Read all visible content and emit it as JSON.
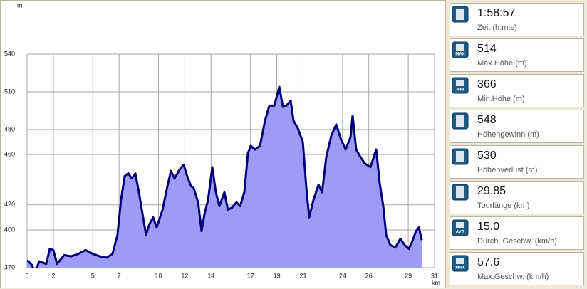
{
  "chart_data": {
    "type": "area",
    "y_unit": "m",
    "x_unit": "km",
    "x": [
      0,
      0.38,
      0.6,
      0.92,
      1.46,
      1.73,
      2.0,
      2.28,
      2.82,
      3.36,
      3.9,
      4.44,
      4.99,
      5.53,
      6.07,
      6.5,
      6.88,
      7.15,
      7.43,
      7.7,
      7.97,
      8.24,
      8.51,
      8.78,
      9.05,
      9.32,
      9.59,
      9.86,
      10.3,
      10.68,
      10.95,
      11.22,
      11.6,
      11.92,
      12.14,
      12.47,
      12.68,
      13.01,
      13.28,
      13.5,
      13.77,
      14.09,
      14.36,
      14.63,
      15.01,
      15.28,
      15.61,
      15.93,
      16.21,
      16.53,
      16.8,
      17.02,
      17.34,
      17.72,
      18.1,
      18.43,
      18.81,
      19.19,
      19.46,
      19.73,
      20.05,
      20.27,
      20.6,
      20.98,
      21.25,
      21.46,
      21.79,
      22.17,
      22.44,
      22.76,
      23.14,
      23.52,
      23.85,
      24.23,
      24.61,
      24.77,
      25.04,
      25.37,
      25.69,
      26.12,
      26.56,
      26.83,
      27.1,
      27.32,
      27.64,
      28.02,
      28.4,
      28.73,
      29.05,
      29.27,
      29.59,
      29.81,
      30.03
    ],
    "values": [
      376,
      372,
      366,
      375,
      373,
      385,
      384,
      373,
      380,
      379,
      381,
      384,
      381,
      379,
      378,
      381,
      396,
      424,
      443,
      445,
      441,
      445,
      430,
      413,
      396,
      405,
      410,
      402,
      416,
      435,
      447,
      441,
      448,
      452,
      444,
      435,
      433,
      422,
      399,
      413,
      424,
      450,
      430,
      419,
      430,
      416,
      418,
      422,
      419,
      430,
      461,
      467,
      464,
      467,
      487,
      499,
      499,
      514,
      498,
      499,
      503,
      487,
      481,
      470,
      433,
      410,
      424,
      436,
      430,
      458,
      475,
      484,
      473,
      464,
      474,
      491,
      464,
      458,
      453,
      450,
      464,
      437,
      419,
      396,
      388,
      386,
      393,
      388,
      385,
      390,
      399,
      402,
      392
    ],
    "color": "#9c9cf4",
    "line_color": "#00007a",
    "xlim": [
      0,
      31
    ],
    "ylim": [
      370,
      540
    ],
    "xticks": [
      0,
      2,
      5,
      7,
      10,
      12,
      14,
      17,
      19,
      21,
      24,
      26,
      29,
      31
    ],
    "yticks": [
      370,
      400,
      420,
      460,
      480,
      510,
      540
    ],
    "grid": true
  },
  "stats": [
    {
      "value": "1:58:57",
      "label": "Zeit (h:m:s)"
    },
    {
      "value": "514",
      "label": "Max.Höhe (m)",
      "badge": "MAX"
    },
    {
      "value": "366",
      "label": "Min.Höhe (m)",
      "badge": "MIN"
    },
    {
      "value": "548",
      "label": "Höhengewinn (m)"
    },
    {
      "value": "530",
      "label": "Höhenverlust (m)"
    },
    {
      "value": "29.85",
      "label": "Tourlänge (km)"
    },
    {
      "value": "15.0",
      "label": "Durch. Geschw. (km/h)",
      "badge": "AVG"
    },
    {
      "value": "57.6",
      "label": "Max.Geschw. (km/h)",
      "badge": "MAX"
    }
  ]
}
